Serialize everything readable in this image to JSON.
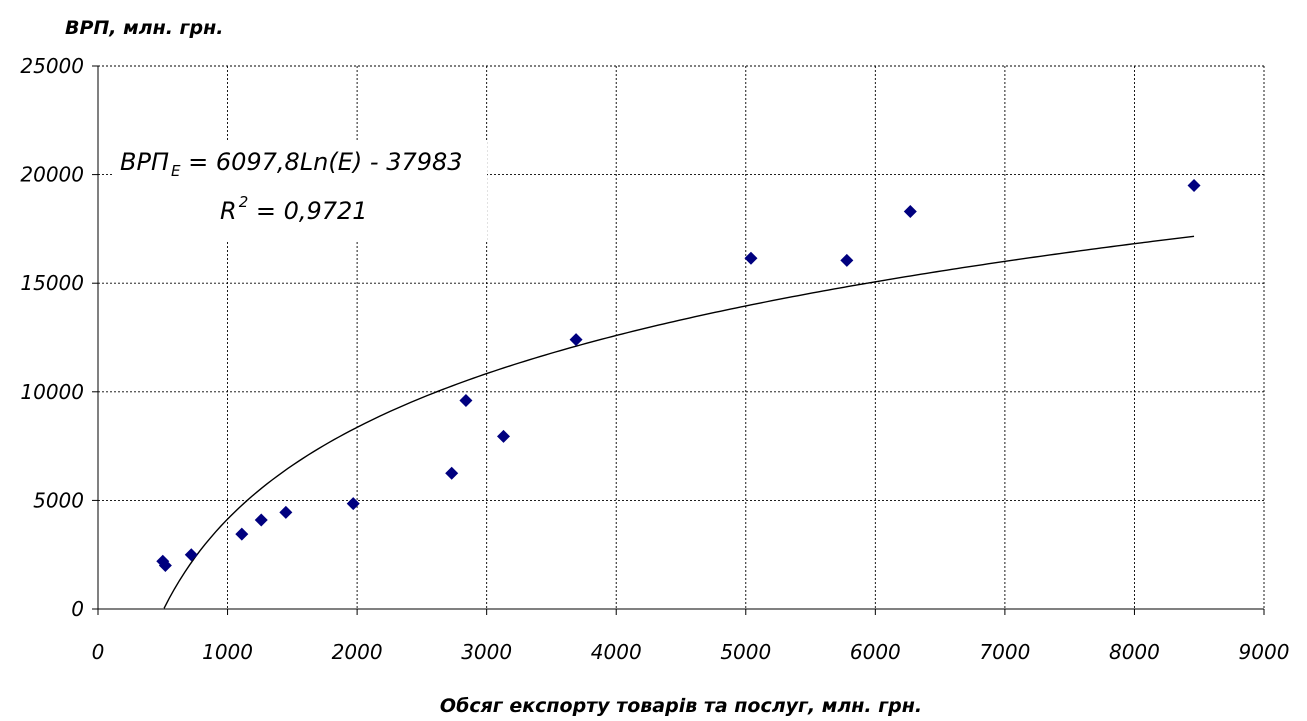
{
  "chart_data": {
    "type": "scatter",
    "ylabel": "ВРП, млн. грн.",
    "xlabel": "Обсяг експорту товарів та послуг, млн. грн.",
    "xlim": [
      0,
      9000
    ],
    "ylim": [
      0,
      25000
    ],
    "xticks": [
      "0",
      "1000",
      "2000",
      "3000",
      "4000",
      "5000",
      "6000",
      "7000",
      "8000",
      "9000"
    ],
    "yticks": [
      "0",
      "5000",
      "10000",
      "15000",
      "20000",
      "25000"
    ],
    "grid": true,
    "marker_color": "#00007f",
    "points": [
      {
        "x": 500,
        "y": 2200
      },
      {
        "x": 520,
        "y": 2000
      },
      {
        "x": 720,
        "y": 2500
      },
      {
        "x": 1110,
        "y": 3450
      },
      {
        "x": 1260,
        "y": 4100
      },
      {
        "x": 1450,
        "y": 4450
      },
      {
        "x": 1970,
        "y": 4850
      },
      {
        "x": 2730,
        "y": 6250
      },
      {
        "x": 2840,
        "y": 9600
      },
      {
        "x": 3130,
        "y": 7950
      },
      {
        "x": 3690,
        "y": 12400
      },
      {
        "x": 5040,
        "y": 16150
      },
      {
        "x": 5780,
        "y": 16050
      },
      {
        "x": 6270,
        "y": 18300
      },
      {
        "x": 8460,
        "y": 19500
      }
    ],
    "trendline": {
      "type": "log",
      "a": 6097.8,
      "b": -37983,
      "x_start": 510,
      "x_end": 8460
    },
    "equation": {
      "lhs_main": "ВРП",
      "lhs_sub": "E",
      "rhs": " = 6097,8Ln(E) - 37983",
      "r2_base": "R",
      "r2_sup": "2",
      "r2_rest": " = 0,9721"
    }
  }
}
